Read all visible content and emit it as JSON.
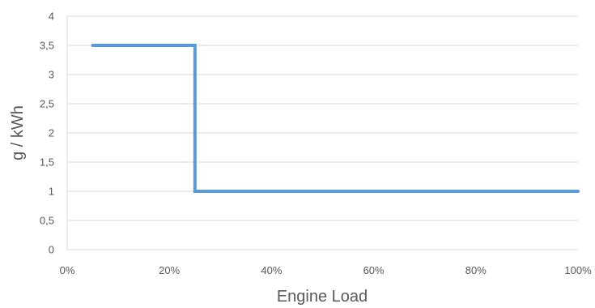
{
  "chart_data": {
    "type": "line",
    "title": "",
    "xlabel": "Engine Load",
    "ylabel": "g / kWh",
    "xlim": [
      0,
      100
    ],
    "ylim": [
      0,
      4
    ],
    "grid": true,
    "x_tick_labels": [
      "0%",
      "20%",
      "40%",
      "60%",
      "80%",
      "100%"
    ],
    "x_tick_values": [
      0,
      20,
      40,
      60,
      80,
      100
    ],
    "y_tick_labels": [
      "0",
      "0,5",
      "1",
      "1,5",
      "2",
      "2,5",
      "3",
      "3,5",
      "4"
    ],
    "y_tick_values": [
      0,
      0.5,
      1,
      1.5,
      2,
      2.5,
      3,
      3.5,
      4
    ],
    "series": [
      {
        "color": "#5b9bd5",
        "x": [
          5,
          25,
          25,
          100
        ],
        "y": [
          3.5,
          3.5,
          1,
          1
        ]
      }
    ]
  }
}
